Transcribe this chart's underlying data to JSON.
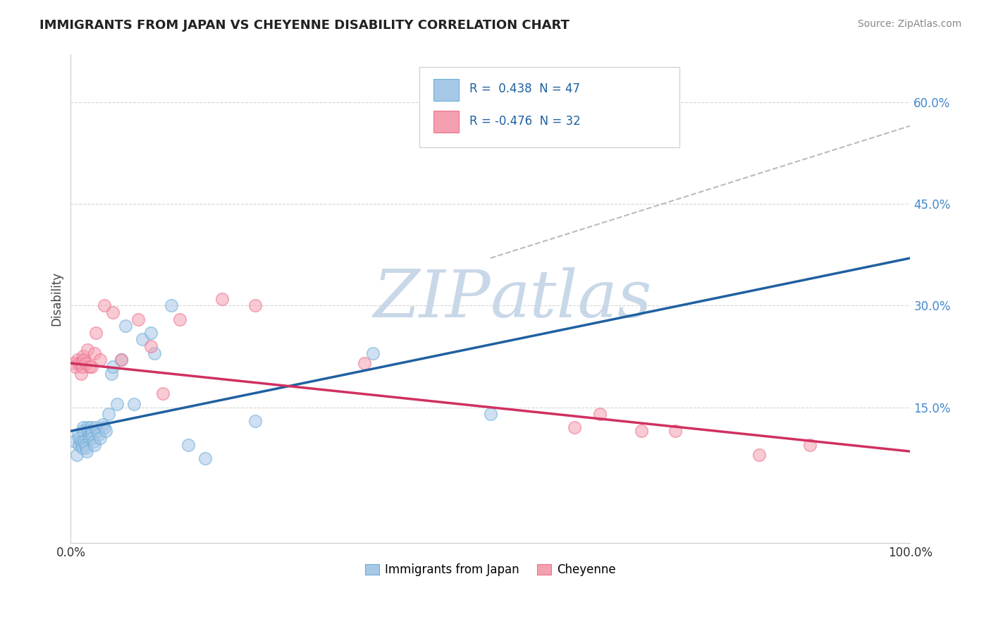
{
  "title": "IMMIGRANTS FROM JAPAN VS CHEYENNE DISABILITY CORRELATION CHART",
  "source": "Source: ZipAtlas.com",
  "ylabel": "Disability",
  "y_ticks": [
    0.15,
    0.3,
    0.45,
    0.6
  ],
  "y_tick_labels": [
    "15.0%",
    "30.0%",
    "45.0%",
    "60.0%"
  ],
  "x_range": [
    0,
    1.0
  ],
  "y_range": [
    -0.05,
    0.67
  ],
  "legend1_r": " 0.438",
  "legend1_n": "47",
  "legend2_r": "-0.476",
  "legend2_n": "32",
  "legend_label1": "Immigrants from Japan",
  "legend_label2": "Cheyenne",
  "blue_color": "#a8c8e8",
  "pink_color": "#f4a0b0",
  "blue_scatter_edge": "#6baed6",
  "pink_scatter_edge": "#f07090",
  "blue_line_color": "#2060a0",
  "pink_line_color": "#d03060",
  "watermark_color": "#c8d8e8",
  "dashed_line_color": "#aaaaaa",
  "background_color": "#ffffff",
  "grid_color": "#cccccc",
  "blue_points_x": [
    0.005,
    0.007,
    0.009,
    0.01,
    0.01,
    0.012,
    0.013,
    0.014,
    0.015,
    0.015,
    0.016,
    0.017,
    0.018,
    0.019,
    0.02,
    0.021,
    0.022,
    0.022,
    0.024,
    0.025,
    0.025,
    0.026,
    0.027,
    0.028,
    0.03,
    0.032,
    0.033,
    0.035,
    0.038,
    0.04,
    0.042,
    0.045,
    0.048,
    0.05,
    0.055,
    0.06,
    0.065,
    0.075,
    0.085,
    0.095,
    0.1,
    0.12,
    0.14,
    0.16,
    0.22,
    0.36,
    0.5
  ],
  "blue_points_y": [
    0.1,
    0.08,
    0.11,
    0.095,
    0.105,
    0.1,
    0.095,
    0.09,
    0.12,
    0.115,
    0.1,
    0.095,
    0.09,
    0.085,
    0.12,
    0.115,
    0.11,
    0.105,
    0.12,
    0.115,
    0.11,
    0.105,
    0.1,
    0.095,
    0.12,
    0.115,
    0.11,
    0.105,
    0.125,
    0.12,
    0.115,
    0.14,
    0.2,
    0.21,
    0.155,
    0.22,
    0.27,
    0.155,
    0.25,
    0.26,
    0.23,
    0.3,
    0.095,
    0.075,
    0.13,
    0.23,
    0.14
  ],
  "pink_points_x": [
    0.004,
    0.006,
    0.008,
    0.01,
    0.012,
    0.013,
    0.014,
    0.015,
    0.016,
    0.018,
    0.02,
    0.022,
    0.025,
    0.028,
    0.03,
    0.035,
    0.04,
    0.05,
    0.06,
    0.08,
    0.095,
    0.11,
    0.13,
    0.18,
    0.22,
    0.35,
    0.6,
    0.63,
    0.68,
    0.72,
    0.82,
    0.88
  ],
  "pink_points_y": [
    0.215,
    0.21,
    0.22,
    0.215,
    0.2,
    0.215,
    0.21,
    0.225,
    0.22,
    0.215,
    0.235,
    0.21,
    0.21,
    0.23,
    0.26,
    0.22,
    0.3,
    0.29,
    0.22,
    0.28,
    0.24,
    0.17,
    0.28,
    0.31,
    0.3,
    0.215,
    0.12,
    0.14,
    0.115,
    0.115,
    0.08,
    0.095
  ],
  "blue_trend": [
    0.0,
    1.0,
    0.115,
    0.37
  ],
  "pink_trend": [
    0.0,
    1.0,
    0.215,
    0.085
  ],
  "dash_line": [
    0.5,
    1.0,
    0.37,
    0.565
  ]
}
